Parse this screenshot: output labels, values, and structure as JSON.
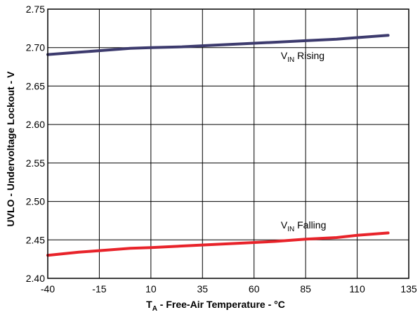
{
  "chart_data": {
    "type": "line",
    "xlabel_main": "T",
    "xlabel_sub": "A",
    "xlabel_rest": " - Free-Air Temperature - °C",
    "ylabel": "UVLO - Undervoltage Lockout - V",
    "xlim": [
      -40,
      135
    ],
    "ylim": [
      2.4,
      2.75
    ],
    "xticks": [
      -40,
      -15,
      10,
      35,
      60,
      85,
      110,
      135
    ],
    "yticks": [
      "2.40",
      "2.45",
      "2.50",
      "2.55",
      "2.60",
      "2.65",
      "2.70",
      "2.75"
    ],
    "grid": true,
    "series": [
      {
        "name": "VIN Rising",
        "label_main": "V",
        "label_sub": "IN",
        "label_rest": " Rising",
        "color": "#3d3b6e",
        "x": [
          -40,
          -25,
          -10,
          0,
          10,
          25,
          40,
          55,
          70,
          85,
          100,
          110,
          125
        ],
        "y": [
          2.691,
          2.694,
          2.697,
          2.699,
          2.7,
          2.701,
          2.703,
          2.705,
          2.707,
          2.709,
          2.711,
          2.713,
          2.716
        ]
      },
      {
        "name": "VIN Falling",
        "label_main": "V",
        "label_sub": "IN",
        "label_rest": " Falling",
        "color": "#e8232a",
        "x": [
          -40,
          -25,
          -10,
          0,
          10,
          25,
          40,
          55,
          70,
          85,
          100,
          110,
          125
        ],
        "y": [
          2.43,
          2.434,
          2.437,
          2.439,
          2.44,
          2.442,
          2.444,
          2.446,
          2.448,
          2.451,
          2.453,
          2.456,
          2.459
        ]
      }
    ]
  }
}
